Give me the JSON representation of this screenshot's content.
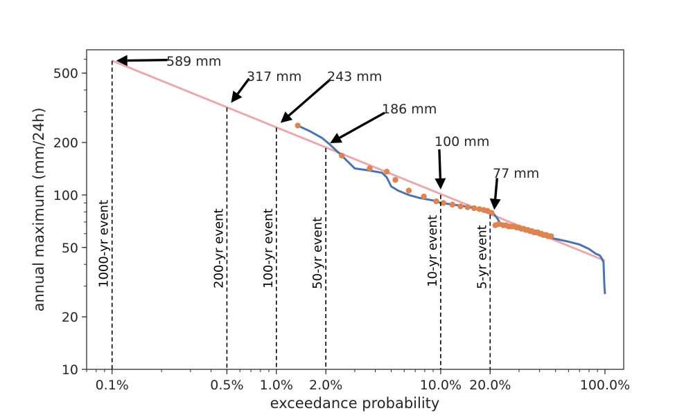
{
  "chart_data": {
    "type": "line",
    "xlabel": "exceedance probability",
    "ylabel": "annual maximum (mm/24h)",
    "x_scale": "log",
    "y_scale": "log",
    "xlim": [
      0.0007,
      1.3
    ],
    "ylim": [
      10,
      680
    ],
    "grid": false,
    "x_ticks": [
      {
        "value": 0.001,
        "label": "0.1%"
      },
      {
        "value": 0.005,
        "label": "0.5%"
      },
      {
        "value": 0.01,
        "label": "1.0%"
      },
      {
        "value": 0.02,
        "label": "2.0%"
      },
      {
        "value": 0.1,
        "label": "10.0%"
      },
      {
        "value": 0.2,
        "label": "20.0%"
      },
      {
        "value": 1.0,
        "label": "100.0%"
      }
    ],
    "y_ticks": [
      {
        "value": 10,
        "label": "10"
      },
      {
        "value": 20,
        "label": "20"
      },
      {
        "value": 50,
        "label": "50"
      },
      {
        "value": 100,
        "label": "100"
      },
      {
        "value": 200,
        "label": "200"
      },
      {
        "value": 500,
        "label": "500"
      }
    ],
    "colors": {
      "observed_line": "#4c72b0",
      "observed_points": "#dd8452",
      "fit_line": "#eaa9aa"
    },
    "fit_line": {
      "x": [
        0.001,
        1.0
      ],
      "y": [
        589,
        42
      ]
    },
    "observed_line": {
      "x": [
        0.0135,
        0.016,
        0.019,
        0.021,
        0.025,
        0.03,
        0.037,
        0.044,
        0.047,
        0.05,
        0.055,
        0.064,
        0.075,
        0.09,
        0.1,
        0.12,
        0.14,
        0.16,
        0.18,
        0.2,
        0.21,
        0.22,
        0.23,
        0.27,
        0.34,
        0.4,
        0.5,
        0.6,
        0.7,
        0.8,
        0.88,
        0.93,
        0.96,
        0.98,
        0.99,
        1.0
      ],
      "y": [
        250,
        232,
        212,
        196,
        168,
        142,
        138,
        134,
        126,
        112,
        106,
        100,
        96,
        93,
        90,
        88,
        86,
        84,
        82,
        80,
        78,
        74,
        69,
        66,
        62,
        59,
        56,
        54,
        52,
        49,
        46,
        45,
        43,
        41,
        31,
        27
      ]
    },
    "observed_points": {
      "x": [
        0.0135,
        0.025,
        0.037,
        0.047,
        0.053,
        0.064,
        0.079,
        0.094,
        0.104,
        0.118,
        0.132,
        0.146,
        0.16,
        0.172,
        0.183,
        0.193,
        0.204,
        0.215,
        0.225,
        0.24,
        0.25,
        0.26,
        0.27,
        0.28,
        0.29,
        0.3,
        0.31,
        0.32,
        0.33,
        0.34,
        0.35,
        0.36,
        0.37,
        0.38,
        0.39,
        0.4,
        0.41,
        0.42,
        0.43,
        0.44,
        0.45,
        0.46,
        0.47
      ],
      "y": [
        250,
        168,
        142,
        136,
        122,
        106,
        98,
        92,
        90,
        88,
        86,
        85,
        84,
        83,
        82,
        81,
        79,
        67,
        68,
        67,
        67,
        66,
        66,
        66,
        65,
        65,
        64,
        64,
        63,
        63,
        62,
        62,
        61,
        61,
        61,
        60,
        60,
        59,
        59,
        59,
        58,
        58,
        58
      ]
    },
    "return_periods": [
      {
        "x": 0.001,
        "y": 589,
        "event_label": "1000-yr event",
        "value_label": "589 mm"
      },
      {
        "x": 0.005,
        "y": 317,
        "event_label": "200-yr event",
        "value_label": "317 mm"
      },
      {
        "x": 0.01,
        "y": 243,
        "event_label": "100-yr event",
        "value_label": "243 mm"
      },
      {
        "x": 0.02,
        "y": 186,
        "event_label": "50-yr event",
        "value_label": "186 mm"
      },
      {
        "x": 0.1,
        "y": 100,
        "event_label": "10-yr event",
        "value_label": "100 mm"
      },
      {
        "x": 0.2,
        "y": 77,
        "event_label": "5-yr event",
        "value_label": "77 mm"
      }
    ]
  }
}
